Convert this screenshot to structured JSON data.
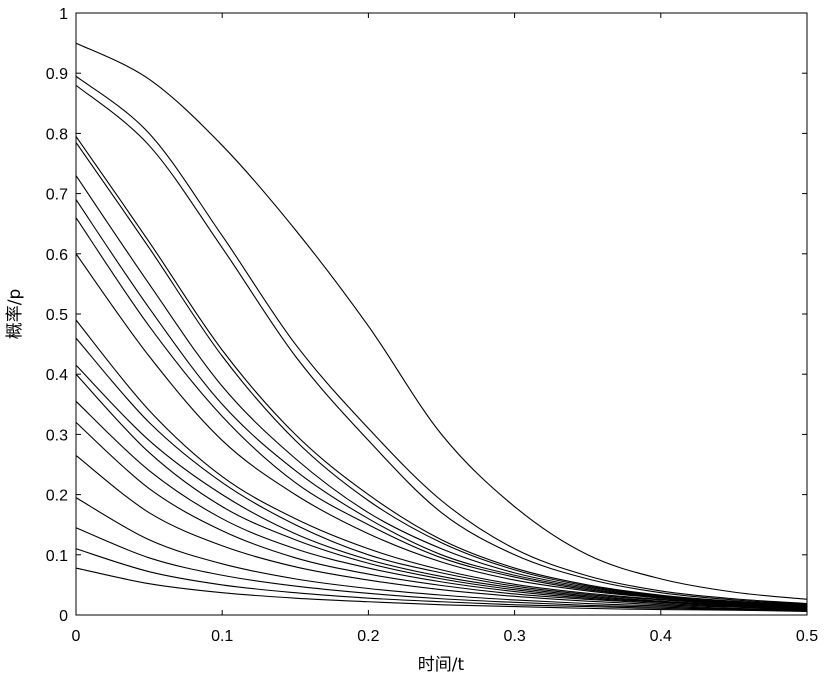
{
  "chart_data": {
    "type": "line",
    "xlabel": "时间/t",
    "ylabel": "概率/p",
    "xlim": [
      0,
      0.5
    ],
    "ylim": [
      0,
      1
    ],
    "x_ticks": [
      "0",
      "0.1",
      "0.2",
      "0.3",
      "0.4",
      "0.5"
    ],
    "y_ticks": [
      "0",
      "0.1",
      "0.2",
      "0.3",
      "0.4",
      "0.5",
      "0.6",
      "0.7",
      "0.8",
      "0.9",
      "1"
    ],
    "grid": false,
    "line_color": "#000000",
    "x": [
      0,
      0.05,
      0.1,
      0.15,
      0.2,
      0.25,
      0.3,
      0.35,
      0.4,
      0.45,
      0.5
    ],
    "series": [
      {
        "values": [
          0.95,
          0.89,
          0.78,
          0.64,
          0.48,
          0.3,
          0.18,
          0.1,
          0.06,
          0.038,
          0.026
        ]
      },
      {
        "values": [
          0.895,
          0.8,
          0.63,
          0.45,
          0.31,
          0.19,
          0.11,
          0.065,
          0.04,
          0.027,
          0.019
        ]
      },
      {
        "values": [
          0.88,
          0.78,
          0.61,
          0.43,
          0.29,
          0.17,
          0.1,
          0.06,
          0.037,
          0.025,
          0.018
        ]
      },
      {
        "values": [
          0.795,
          0.62,
          0.44,
          0.3,
          0.2,
          0.125,
          0.078,
          0.05,
          0.033,
          0.023,
          0.017
        ]
      },
      {
        "values": [
          0.785,
          0.61,
          0.43,
          0.29,
          0.19,
          0.12,
          0.075,
          0.048,
          0.032,
          0.022,
          0.016
        ]
      },
      {
        "values": [
          0.73,
          0.55,
          0.38,
          0.26,
          0.17,
          0.11,
          0.07,
          0.046,
          0.031,
          0.021,
          0.015
        ]
      },
      {
        "values": [
          0.69,
          0.51,
          0.35,
          0.24,
          0.16,
          0.1,
          0.066,
          0.044,
          0.03,
          0.021,
          0.015
        ]
      },
      {
        "values": [
          0.66,
          0.48,
          0.33,
          0.22,
          0.15,
          0.095,
          0.063,
          0.042,
          0.029,
          0.02,
          0.014
        ]
      },
      {
        "values": [
          0.6,
          0.43,
          0.29,
          0.2,
          0.135,
          0.088,
          0.058,
          0.04,
          0.028,
          0.019,
          0.014
        ]
      },
      {
        "values": [
          0.49,
          0.34,
          0.23,
          0.16,
          0.11,
          0.075,
          0.051,
          0.036,
          0.026,
          0.018,
          0.013
        ]
      },
      {
        "values": [
          0.46,
          0.32,
          0.22,
          0.15,
          0.1,
          0.07,
          0.048,
          0.034,
          0.025,
          0.018,
          0.013
        ]
      },
      {
        "values": [
          0.415,
          0.29,
          0.2,
          0.135,
          0.092,
          0.064,
          0.045,
          0.032,
          0.023,
          0.017,
          0.012
        ]
      },
      {
        "values": [
          0.4,
          0.27,
          0.18,
          0.125,
          0.086,
          0.06,
          0.042,
          0.03,
          0.022,
          0.016,
          0.012
        ]
      },
      {
        "values": [
          0.355,
          0.24,
          0.16,
          0.11,
          0.078,
          0.055,
          0.039,
          0.028,
          0.021,
          0.015,
          0.011
        ]
      },
      {
        "values": [
          0.32,
          0.21,
          0.14,
          0.095,
          0.068,
          0.049,
          0.035,
          0.026,
          0.019,
          0.014,
          0.011
        ]
      },
      {
        "values": [
          0.265,
          0.17,
          0.115,
          0.08,
          0.058,
          0.042,
          0.031,
          0.023,
          0.017,
          0.013,
          0.01
        ]
      },
      {
        "values": [
          0.195,
          0.125,
          0.085,
          0.06,
          0.044,
          0.033,
          0.025,
          0.019,
          0.015,
          0.011,
          0.009
        ]
      },
      {
        "values": [
          0.145,
          0.095,
          0.066,
          0.048,
          0.036,
          0.027,
          0.021,
          0.016,
          0.013,
          0.01,
          0.008
        ]
      },
      {
        "values": [
          0.11,
          0.072,
          0.05,
          0.037,
          0.028,
          0.022,
          0.017,
          0.014,
          0.011,
          0.009,
          0.007
        ]
      },
      {
        "values": [
          0.078,
          0.052,
          0.037,
          0.028,
          0.022,
          0.017,
          0.014,
          0.011,
          0.009,
          0.008,
          0.006
        ]
      }
    ]
  }
}
